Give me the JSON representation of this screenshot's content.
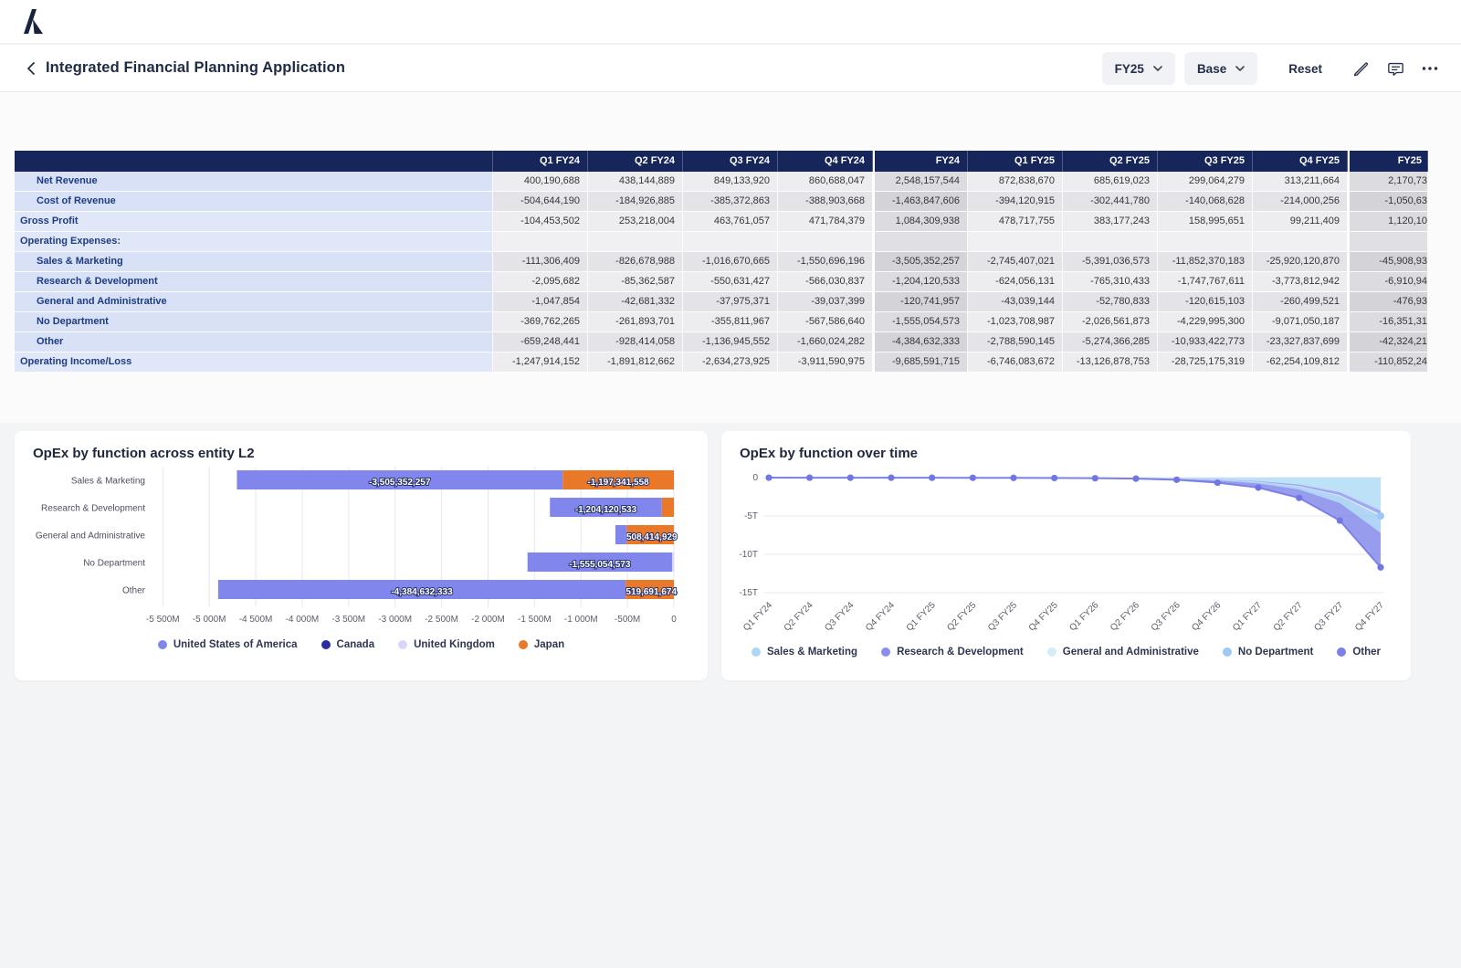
{
  "topbar": {
    "logo": "anaplan-logo"
  },
  "toolbar": {
    "title": "Integrated Financial Planning Application",
    "period_button": "FY25",
    "version_button": "Base",
    "reset_button": "Reset"
  },
  "table": {
    "columns": [
      "Q1 FY24",
      "Q2 FY24",
      "Q3 FY24",
      "Q4 FY24",
      "FY24",
      "Q1 FY25",
      "Q2 FY25",
      "Q3 FY25",
      "Q4 FY25",
      "FY25"
    ],
    "total_column_indices": [
      4,
      9
    ],
    "rows": [
      {
        "label": "Net Revenue",
        "indent": 1,
        "values": [
          "400,190,688",
          "438,144,889",
          "849,133,920",
          "860,688,047",
          "2,548,157,544",
          "872,838,670",
          "685,619,023",
          "299,064,279",
          "313,211,664",
          "2,170,73"
        ]
      },
      {
        "label": "Cost of Revenue",
        "indent": 1,
        "values": [
          "-504,644,190",
          "-184,926,885",
          "-385,372,863",
          "-388,903,668",
          "-1,463,847,606",
          "-394,120,915",
          "-302,441,780",
          "-140,068,628",
          "-214,000,256",
          "-1,050,63"
        ]
      },
      {
        "label": "Gross Profit",
        "indent": 0,
        "values": [
          "-104,453,502",
          "253,218,004",
          "463,761,057",
          "471,784,379",
          "1,084,309,938",
          "478,717,755",
          "383,177,243",
          "158,995,651",
          "99,211,409",
          "1,120,10"
        ]
      },
      {
        "label": "Operating Expenses:",
        "indent": 0,
        "blank": true,
        "values": [
          "",
          "",
          "",
          "",
          "",
          "",
          "",
          "",
          "",
          ""
        ]
      },
      {
        "label": "Sales & Marketing",
        "indent": 1,
        "values": [
          "-111,306,409",
          "-826,678,988",
          "-1,016,670,665",
          "-1,550,696,196",
          "-3,505,352,257",
          "-2,745,407,021",
          "-5,391,036,573",
          "-11,852,370,183",
          "-25,920,120,870",
          "-45,908,93"
        ]
      },
      {
        "label": "Research & Development",
        "indent": 1,
        "values": [
          "-2,095,682",
          "-85,362,587",
          "-550,631,427",
          "-566,030,837",
          "-1,204,120,533",
          "-624,056,131",
          "-765,310,433",
          "-1,747,767,611",
          "-3,773,812,942",
          "-6,910,94"
        ]
      },
      {
        "label": "General and Administrative",
        "indent": 1,
        "values": [
          "-1,047,854",
          "-42,681,332",
          "-37,975,371",
          "-39,037,399",
          "-120,741,957",
          "-43,039,144",
          "-52,780,833",
          "-120,615,103",
          "-260,499,521",
          "-476,93"
        ]
      },
      {
        "label": "No Department",
        "indent": 1,
        "values": [
          "-369,762,265",
          "-261,893,701",
          "-355,811,967",
          "-567,586,640",
          "-1,555,054,573",
          "-1,023,708,987",
          "-2,026,561,873",
          "-4,229,995,300",
          "-9,071,050,187",
          "-16,351,31"
        ]
      },
      {
        "label": "Other",
        "indent": 1,
        "values": [
          "-659,248,441",
          "-928,414,058",
          "-1,136,945,552",
          "-1,660,024,282",
          "-4,384,632,333",
          "-2,788,590,145",
          "-5,274,366,285",
          "-10,933,422,773",
          "-23,327,837,699",
          "-42,324,21"
        ]
      },
      {
        "label": "Operating Income/Loss",
        "indent": 0,
        "values": [
          "-1,247,914,152",
          "-1,891,812,662",
          "-2,634,273,925",
          "-3,911,590,975",
          "-9,685,591,715",
          "-6,746,083,672",
          "-13,126,878,753",
          "-28,725,175,319",
          "-62,254,109,812",
          "-110,852,24"
        ]
      }
    ]
  },
  "chart_data": [
    {
      "type": "bar",
      "orientation": "horizontal",
      "title": "OpEx by function across entity L2",
      "categories": [
        "Sales & Marketing",
        "Research & Development",
        "General and Administrative",
        "No Department",
        "Other"
      ],
      "series": [
        {
          "name": "United States of America",
          "color": "#8186ec",
          "values": [
            -3505352257,
            -1204120533,
            -120741957,
            -1555054573,
            -4384632333
          ],
          "labels": [
            "-3,505,352,257",
            "-1,204,120,533",
            "",
            "-1,555,054,573",
            "-4,384,632,333"
          ]
        },
        {
          "name": "Canada",
          "color": "#2b2ba5",
          "values": [
            0,
            0,
            0,
            0,
            0
          ],
          "labels": [
            "",
            "",
            "",
            "",
            ""
          ]
        },
        {
          "name": "United Kingdom",
          "color": "#d7d6f8",
          "values": [
            0,
            0,
            0,
            -20000000,
            0
          ],
          "labels": [
            "",
            "",
            "",
            "",
            ""
          ]
        },
        {
          "name": "Japan",
          "color": "#e97829",
          "values": [
            -1197341558,
            -130000000,
            -508414929,
            0,
            -519691674
          ],
          "labels": [
            "-1,197,341,558",
            "",
            "-508,414,929",
            "",
            "-519,691,674"
          ]
        }
      ],
      "x_ticks": [
        "-5 500M",
        "-5 000M",
        "-4 500M",
        "-4 000M",
        "-3 500M",
        "-3 000M",
        "-2 500M",
        "-2 000M",
        "-1 500M",
        "-1 000M",
        "-500M",
        "0"
      ],
      "xlim": [
        -5650000000,
        0
      ],
      "grid": true,
      "legend_position": "bottom"
    },
    {
      "type": "area",
      "title": "OpEx by function over time",
      "x": [
        "Q1 FY24",
        "Q2 FY24",
        "Q3 FY24",
        "Q4 FY24",
        "Q1 FY25",
        "Q2 FY25",
        "Q3 FY25",
        "Q4 FY25",
        "Q1 FY26",
        "Q2 FY26",
        "Q3 FY26",
        "Q4 FY26",
        "Q1 FY27",
        "Q2 FY27",
        "Q3 FY27",
        "Q4 FY27"
      ],
      "y_ticks": [
        "0",
        "-5T",
        "-10T",
        "-15T"
      ],
      "ylim_T": [
        -15,
        0
      ],
      "stacked": true,
      "grid": true,
      "legend_position": "bottom",
      "series": [
        {
          "name": "Sales & Marketing",
          "color": "#aad8f3",
          "values_T": [
            -0.003,
            -0.004,
            -0.005,
            -0.006,
            -0.008,
            -0.01,
            -0.013,
            -0.018,
            -0.03,
            -0.05,
            -0.1,
            -0.22,
            -0.45,
            -0.9,
            -1.9,
            -4.3
          ]
        },
        {
          "name": "Research & Development",
          "color": "#8a8fee",
          "values_T": [
            -0.001,
            -0.001,
            -0.002,
            -0.002,
            -0.002,
            -0.003,
            -0.004,
            -0.005,
            -0.008,
            -0.012,
            -0.025,
            -0.05,
            -0.1,
            -0.2,
            -0.4,
            -0.5
          ]
        },
        {
          "name": "General and Administrative",
          "color": "#d6edf8",
          "values_T": [
            0,
            0,
            0,
            0,
            -0.001,
            -0.001,
            -0.001,
            -0.001,
            -0.002,
            -0.003,
            -0.005,
            -0.01,
            -0.02,
            -0.04,
            -0.1,
            -0.2
          ]
        },
        {
          "name": "No Department",
          "color": "#9bc9f1",
          "values_T": [
            -0.001,
            -0.001,
            -0.001,
            -0.002,
            -0.002,
            -0.003,
            -0.004,
            -0.006,
            -0.01,
            -0.015,
            -0.03,
            -0.08,
            -0.18,
            -0.4,
            -0.9,
            -2.2
          ]
        },
        {
          "name": "Other",
          "color": "#7b80e8",
          "values_T": [
            -0.002,
            -0.003,
            -0.004,
            -0.005,
            -0.006,
            -0.008,
            -0.012,
            -0.02,
            -0.03,
            -0.05,
            -0.12,
            -0.3,
            -0.55,
            -1.1,
            -2.3,
            -4.5
          ]
        }
      ]
    }
  ]
}
